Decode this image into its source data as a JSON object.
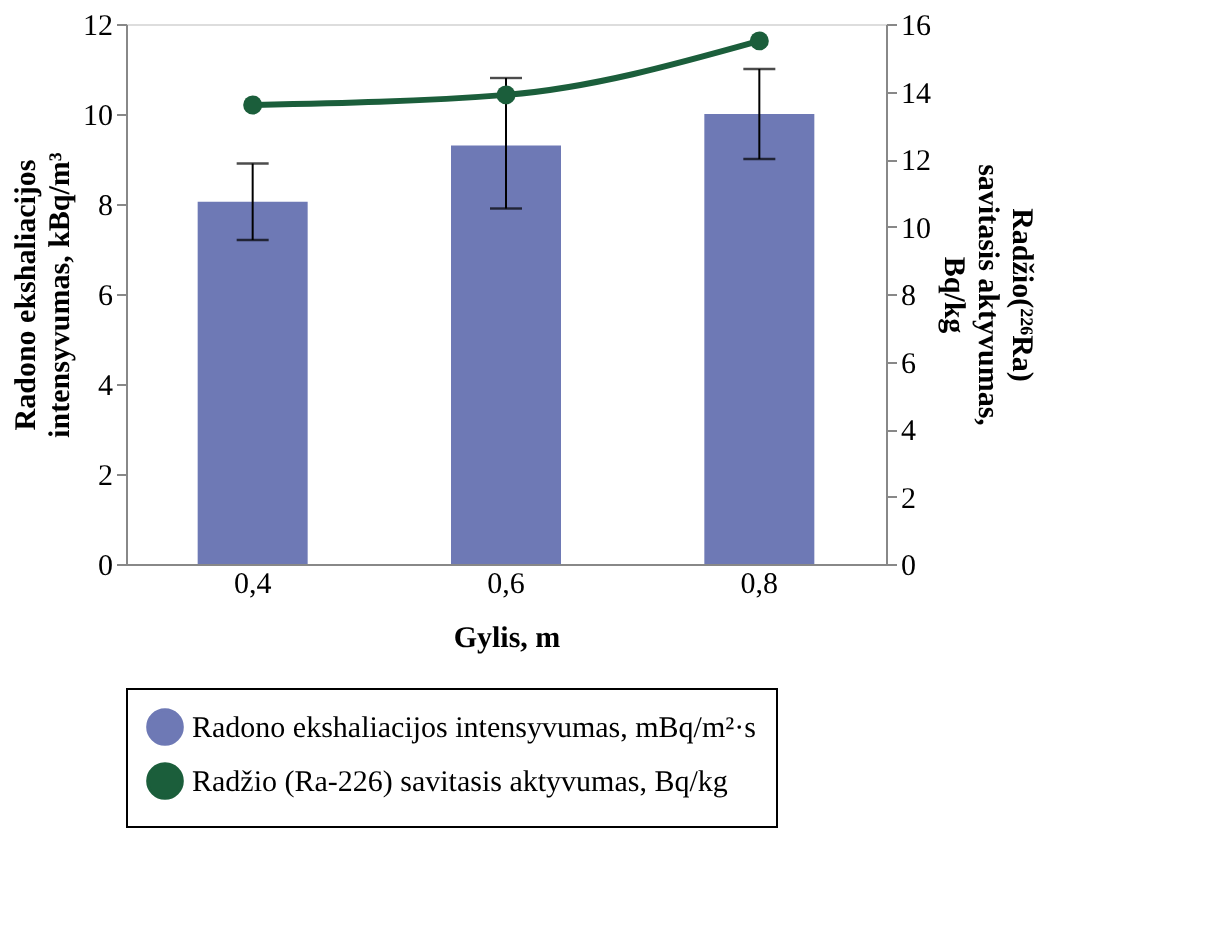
{
  "chart_data": {
    "type": "bar",
    "xlabel": "Gylis, m",
    "ylabel": "Radono ekshaliacijos intensyvumas, kBq/m³",
    "y2label": "Radžio(²²⁶Ra) savitasis aktyvumas, Bq/kg",
    "categories": [
      "0,4",
      "0,6",
      "0,8"
    ],
    "series": [
      {
        "name": "Radono ekshaliacijos intensyvumas, mBq/m²·s",
        "color": "#6e79b5",
        "values": [
          8.05,
          9.3,
          10.0
        ],
        "errors": [
          [
            7.2,
            8.9
          ],
          [
            7.9,
            10.8
          ],
          [
            9.0,
            11.0
          ]
        ]
      },
      {
        "name": "Radžio (Ra-226) savitasis aktyvumas, Bq/kg",
        "type": "line",
        "axis": "y2",
        "color": "#1b5e3b",
        "values": [
          13.6,
          13.9,
          15.5
        ],
        "marker": "circle"
      }
    ],
    "ylim": [
      0,
      12
    ],
    "yticks": [
      0,
      2,
      4,
      6,
      8,
      10,
      12
    ],
    "y2lim": [
      0,
      16
    ],
    "y2ticks": [
      0,
      2,
      4,
      6,
      8,
      10,
      12,
      14,
      16
    ],
    "grid": false,
    "legend": "bottom"
  }
}
